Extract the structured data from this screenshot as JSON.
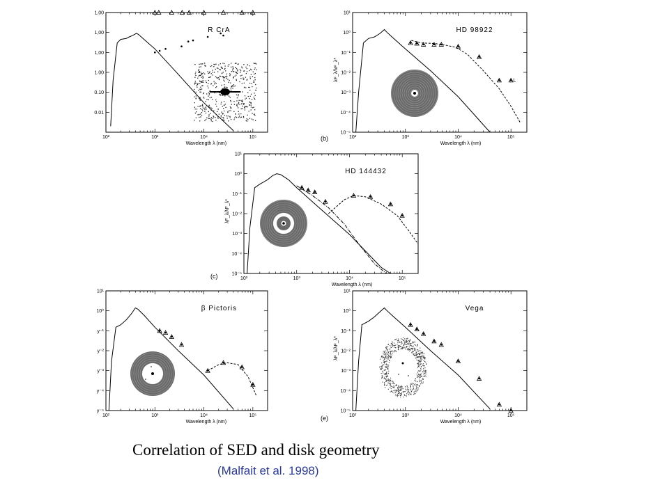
{
  "caption": "Correlation of SED and disk geometry",
  "citation": "(Malfait et al. 1998)",
  "chart_data": [
    {
      "type": "line",
      "title": "R CrA",
      "panel_label": "",
      "xlabel": "Wavelength λ (nm)",
      "ylabel": "",
      "x_scale": "log",
      "y_scale": "log",
      "xlim": [
        100,
        200000
      ],
      "ylim": [
        1e-05,
        10
      ],
      "xticks": [
        "10²",
        "10³",
        "10⁴",
        "10⁵"
      ],
      "yticks": [
        "1,00",
        "1,00",
        "1,00",
        "1.00",
        "0.10",
        "0.01"
      ],
      "photosphere": [
        [
          125,
          2e-05
        ],
        [
          140,
          0.004
        ],
        [
          170,
          0.3
        ],
        [
          200,
          0.45
        ],
        [
          260,
          0.5
        ],
        [
          300,
          0.6
        ],
        [
          350,
          0.7
        ],
        [
          420,
          0.9
        ],
        [
          460,
          0.8
        ],
        [
          600,
          0.45
        ],
        [
          1000,
          0.15
        ],
        [
          3000,
          0.008
        ],
        [
          10000,
          0.0003
        ],
        [
          40000,
          1.2e-05
        ]
      ],
      "observations": [
        [
          1000,
          0.1
        ],
        [
          1250,
          0.12
        ],
        [
          1650,
          0.15
        ],
        [
          3500,
          0.2
        ],
        [
          4800,
          0.35
        ],
        [
          6000,
          0.4
        ],
        [
          12000,
          0.6
        ],
        [
          22000,
          0.9
        ],
        [
          25000,
          0.7
        ]
      ],
      "ir_points": [
        [
          1000,
          60
        ],
        [
          1200,
          90
        ],
        [
          2200,
          2000
        ],
        [
          3600,
          4000
        ],
        [
          5000,
          5000
        ],
        [
          10000,
          12000
        ],
        [
          25000,
          15000
        ],
        [
          60000,
          20000
        ],
        [
          100000,
          30000
        ]
      ],
      "disk_image": "irregular-dust-cloud"
    },
    {
      "type": "line",
      "title": "HD 98922",
      "panel_label": "(b)",
      "xlabel": "Wavelength λ (nm)",
      "ylabel": "λF_λ/λF_λ*",
      "x_scale": "log",
      "y_scale": "log",
      "xlim": [
        100,
        200000
      ],
      "ylim": [
        1e-05,
        10
      ],
      "xticks": [
        "10²",
        "10³",
        "10⁴",
        "10⁵"
      ],
      "yticks": [
        "10¹",
        "10⁰",
        "10⁻¹",
        "10⁻²",
        "10⁻³",
        "10⁻⁴",
        "10⁻⁵"
      ],
      "photosphere": [
        [
          115,
          1e-05
        ],
        [
          130,
          0.001
        ],
        [
          160,
          0.3
        ],
        [
          200,
          0.5
        ],
        [
          260,
          0.6
        ],
        [
          330,
          0.9
        ],
        [
          400,
          1.4
        ],
        [
          450,
          1.0
        ],
        [
          600,
          0.5
        ],
        [
          1000,
          0.15
        ],
        [
          3000,
          0.012
        ],
        [
          10000,
          0.0006
        ],
        [
          40000,
          1e-05
        ]
      ],
      "excess": [
        [
          1300,
          0.4
        ],
        [
          2000,
          0.3
        ],
        [
          3500,
          0.28
        ],
        [
          5000,
          0.25
        ],
        [
          9000,
          0.18
        ],
        [
          15000,
          0.08
        ],
        [
          30000,
          0.012
        ],
        [
          60000,
          0.0015
        ],
        [
          100000,
          0.0002
        ],
        [
          150000,
          3e-05
        ]
      ],
      "observations": [
        [
          1250,
          0.3
        ],
        [
          1650,
          0.28
        ],
        [
          2200,
          0.25
        ],
        [
          3500,
          0.25
        ],
        [
          4800,
          0.25
        ],
        [
          10000,
          0.2
        ],
        [
          25000,
          0.06
        ],
        [
          60000,
          0.004
        ],
        [
          100000,
          0.004
        ]
      ],
      "upper_limit_marker": "L",
      "disk_image": "uniform-disk"
    },
    {
      "type": "line",
      "title": "HD 144432",
      "panel_label": "(c)",
      "xlabel": "Wavelength λ (nm)",
      "ylabel": "λF_λ/λF_λ*",
      "x_scale": "log",
      "y_scale": "log",
      "xlim": [
        100,
        200000
      ],
      "ylim": [
        1e-05,
        10
      ],
      "xticks": [
        "10²",
        "10³",
        "10⁴",
        "10⁵"
      ],
      "yticks": [
        "10¹",
        "10⁰",
        "10⁻¹",
        "10⁻²",
        "10⁻³",
        "10⁻⁴",
        "10⁻⁵"
      ],
      "photosphere": [
        [
          115,
          1e-05
        ],
        [
          130,
          0.002
        ],
        [
          160,
          0.2
        ],
        [
          200,
          0.3
        ],
        [
          280,
          0.5
        ],
        [
          350,
          0.8
        ],
        [
          420,
          1.0
        ],
        [
          500,
          0.9
        ],
        [
          700,
          0.5
        ],
        [
          1000,
          0.2
        ],
        [
          3000,
          0.015
        ],
        [
          10000,
          0.0009
        ],
        [
          40000,
          2e-05
        ],
        [
          60000,
          7e-06
        ]
      ],
      "hot_dust": [
        [
          1000,
          0.25
        ],
        [
          2000,
          0.08
        ],
        [
          4000,
          0.02
        ],
        [
          8000,
          0.003
        ],
        [
          15000,
          0.0003
        ],
        [
          30000,
          3e-05
        ],
        [
          50000,
          1e-05
        ]
      ],
      "cold_dust": [
        [
          4000,
          0.01
        ],
        [
          8000,
          0.05
        ],
        [
          12000,
          0.08
        ],
        [
          20000,
          0.07
        ],
        [
          40000,
          0.03
        ],
        [
          80000,
          0.008
        ],
        [
          130000,
          0.0015
        ],
        [
          200000,
          0.0003
        ]
      ],
      "observations": [
        [
          1250,
          0.2
        ],
        [
          1650,
          0.15
        ],
        [
          2200,
          0.12
        ],
        [
          3500,
          0.04
        ],
        [
          12000,
          0.08
        ],
        [
          25000,
          0.07
        ],
        [
          60000,
          0.03
        ],
        [
          100000,
          0.008
        ]
      ],
      "disk_image": "disk-with-gap"
    },
    {
      "type": "line",
      "title": "β Pictoris",
      "panel_label": "",
      "xlabel": "Wavelength λ (nm)",
      "ylabel": "",
      "x_scale": "log",
      "y_scale": "log",
      "xlim": [
        100,
        200000
      ],
      "ylim": [
        1e-05,
        10
      ],
      "xticks": [
        "10²",
        "10³",
        "10⁴",
        "10⁵"
      ],
      "yticks": [
        "10¹",
        "10⁰",
        "y⁻¹",
        "y⁻²",
        "y⁻³",
        "y⁻⁴",
        "y⁻⁵"
      ],
      "photosphere": [
        [
          115,
          1e-05
        ],
        [
          130,
          0.003
        ],
        [
          160,
          0.15
        ],
        [
          200,
          0.2
        ],
        [
          260,
          0.35
        ],
        [
          330,
          0.7
        ],
        [
          400,
          1.4
        ],
        [
          450,
          1.2
        ],
        [
          600,
          0.6
        ],
        [
          1000,
          0.15
        ],
        [
          3000,
          0.01
        ],
        [
          10000,
          0.0006
        ],
        [
          40000,
          1.2e-05
        ]
      ],
      "excess": [
        [
          12000,
          0.001
        ],
        [
          20000,
          0.002
        ],
        [
          30000,
          0.0025
        ],
        [
          50000,
          0.002
        ],
        [
          80000,
          0.0005
        ],
        [
          120000,
          5e-05
        ]
      ],
      "observations": [
        [
          1250,
          0.1
        ],
        [
          1650,
          0.08
        ],
        [
          2200,
          0.05
        ],
        [
          3500,
          0.02
        ],
        [
          12000,
          0.001
        ],
        [
          25000,
          0.0025
        ],
        [
          60000,
          0.0015
        ],
        [
          100000,
          0.0002
        ]
      ],
      "disk_image": "wide-disk"
    },
    {
      "type": "line",
      "title": "Vega",
      "panel_label": "(e)",
      "xlabel": "Wavelength λ (nm)",
      "ylabel": "λF_λ/λF_λ*",
      "x_scale": "log",
      "y_scale": "log",
      "xlim": [
        100,
        200000
      ],
      "ylim": [
        1e-05,
        10
      ],
      "xticks": [
        "10²",
        "10³",
        "10⁴",
        "10⁵"
      ],
      "yticks": [
        "10¹",
        "10⁰",
        "10⁻¹",
        "10⁻²",
        "10⁻³",
        "10⁻⁴",
        "10⁻⁵"
      ],
      "photosphere": [
        [
          115,
          1e-05
        ],
        [
          130,
          0.003
        ],
        [
          150,
          0.2
        ],
        [
          200,
          0.3
        ],
        [
          260,
          0.5
        ],
        [
          330,
          0.9
        ],
        [
          400,
          1.4
        ],
        [
          450,
          1.0
        ],
        [
          600,
          0.5
        ],
        [
          1000,
          0.15
        ],
        [
          3000,
          0.01
        ],
        [
          10000,
          0.0006
        ],
        [
          40000,
          1.2e-05
        ]
      ],
      "observations": [
        [
          1250,
          0.2
        ],
        [
          1650,
          0.12
        ],
        [
          2200,
          0.07
        ],
        [
          3500,
          0.03
        ],
        [
          4800,
          0.02
        ],
        [
          10000,
          0.003
        ],
        [
          25000,
          0.0004
        ],
        [
          60000,
          2e-05
        ],
        [
          100000,
          1e-05
        ]
      ],
      "disk_image": "ring-of-dust"
    }
  ]
}
